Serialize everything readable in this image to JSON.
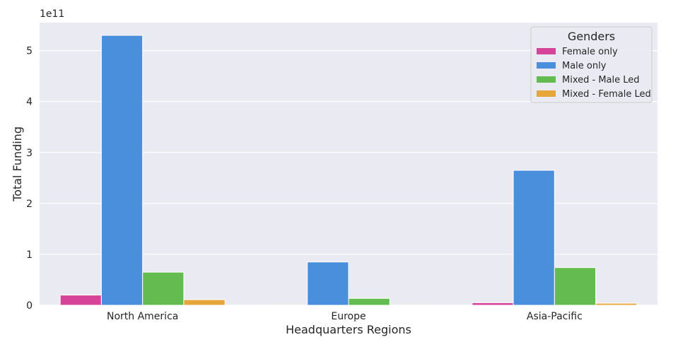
{
  "chart_data": {
    "type": "bar",
    "categories": [
      "North America",
      "Europe",
      "Asia-Pacific"
    ],
    "series": [
      {
        "name": "Female only",
        "color": "#d6449a",
        "values": [
          20000000000.0,
          200000000.0,
          5000000000.0
        ]
      },
      {
        "name": "Male only",
        "color": "#4a8fdc",
        "values": [
          530000000000.0,
          85000000000.0,
          265000000000.0
        ]
      },
      {
        "name": "Mixed - Male Led",
        "color": "#64bc50",
        "values": [
          65000000000.0,
          13500000000.0,
          74000000000.0
        ]
      },
      {
        "name": "Mixed - Female Led",
        "color": "#e6a63a",
        "values": [
          11000000000.0,
          100000000.0,
          4000000000.0
        ]
      }
    ],
    "xlabel": "Headquarters Regions",
    "ylabel": "Total Funding",
    "ylim": [
      0,
      555000000000.0
    ],
    "yticks": [
      0,
      100000000000.0,
      200000000000.0,
      300000000000.0,
      400000000000.0,
      500000000000.0
    ],
    "ytick_labels": [
      "0",
      "1",
      "2",
      "3",
      "4",
      "5"
    ],
    "scale_label": "1e11",
    "legend_title": "Genders",
    "legend_position": "top-right",
    "grid": true,
    "background": "#eaeaf2"
  }
}
